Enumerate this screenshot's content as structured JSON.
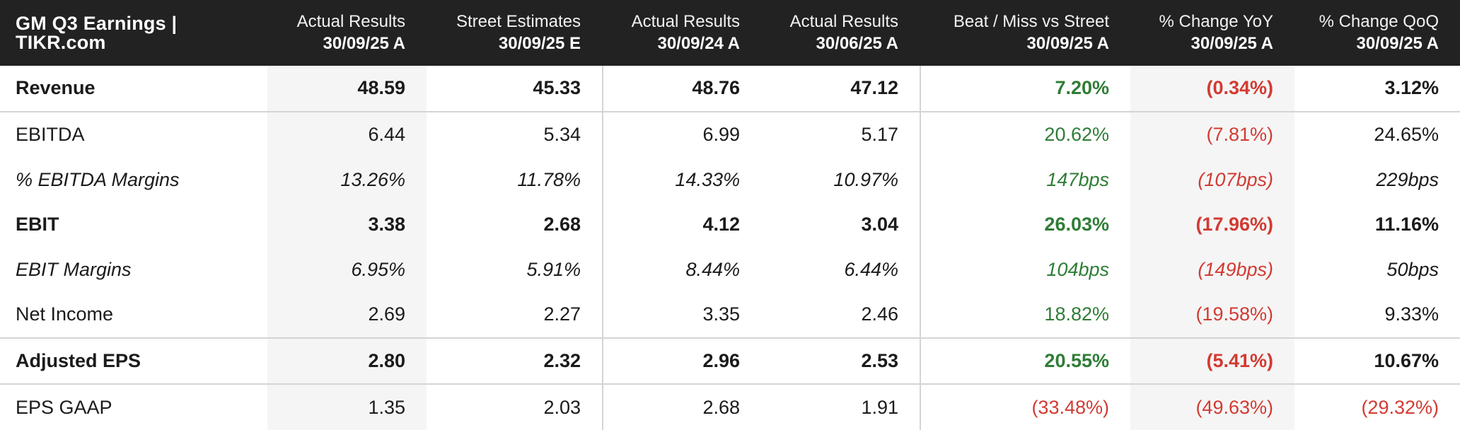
{
  "colors": {
    "header_bg": "#222222",
    "header_text": "#ffffff",
    "body_text": "#1b1b1b",
    "positive_green": "#2f7d36",
    "negative_red": "#d23b33",
    "shaded_column_bg": "#f5f5f5",
    "divider": "#d4d4d4"
  },
  "chart_data": {
    "type": "table",
    "title": "GM Q3 Earnings | TIKR.com",
    "column_headers": [
      {
        "label": "Actual Results",
        "date": "30/09/25 A"
      },
      {
        "label": "Street Estimates",
        "date": "30/09/25 E"
      },
      {
        "label": "Actual Results",
        "date": "30/09/24 A"
      },
      {
        "label": "Actual Results",
        "date": "30/06/25 A"
      },
      {
        "label": "Beat / Miss vs Street",
        "date": "30/09/25 A"
      },
      {
        "label": "% Change YoY",
        "date": "30/09/25 A"
      },
      {
        "label": "% Change QoQ",
        "date": "30/09/25 A"
      }
    ],
    "rows": [
      {
        "label": "Revenue",
        "style_class": "bold",
        "values": [
          "48.59",
          "45.33",
          "48.76",
          "47.12",
          "7.20%",
          "(0.34%)",
          "3.12%"
        ],
        "value_classes": [
          "pos",
          "neg",
          "plain"
        ]
      },
      {
        "label": "EBITDA",
        "style_class": "regular",
        "values": [
          "6.44",
          "5.34",
          "6.99",
          "5.17",
          "20.62%",
          "(7.81%)",
          "24.65%"
        ],
        "value_classes": [
          "pos",
          "neg",
          "plain"
        ]
      },
      {
        "label": "% EBITDA Margins",
        "style_class": "italic",
        "values": [
          "13.26%",
          "11.78%",
          "14.33%",
          "10.97%",
          "147bps",
          "(107bps)",
          "229bps"
        ],
        "value_classes": [
          "pos",
          "neg",
          "plain"
        ]
      },
      {
        "label": "EBIT",
        "style_class": "bold",
        "values": [
          "3.38",
          "2.68",
          "4.12",
          "3.04",
          "26.03%",
          "(17.96%)",
          "11.16%"
        ],
        "value_classes": [
          "pos",
          "neg",
          "plain"
        ]
      },
      {
        "label": "EBIT Margins",
        "style_class": "italic",
        "values": [
          "6.95%",
          "5.91%",
          "8.44%",
          "6.44%",
          "104bps",
          "(149bps)",
          "50bps"
        ],
        "value_classes": [
          "pos",
          "neg",
          "plain"
        ]
      },
      {
        "label": "Net Income",
        "style_class": "regular",
        "values": [
          "2.69",
          "2.27",
          "3.35",
          "2.46",
          "18.82%",
          "(19.58%)",
          "9.33%"
        ],
        "value_classes": [
          "pos",
          "neg",
          "plain"
        ]
      },
      {
        "label": "Adjusted EPS",
        "style_class": "bold",
        "values": [
          "2.80",
          "2.32",
          "2.96",
          "2.53",
          "20.55%",
          "(5.41%)",
          "10.67%"
        ],
        "value_classes": [
          "pos",
          "neg",
          "plain"
        ]
      },
      {
        "label": "EPS GAAP",
        "style_class": "regular",
        "values": [
          "1.35",
          "2.03",
          "2.68",
          "1.91",
          "(33.48%)",
          "(49.63%)",
          "(29.32%)"
        ],
        "value_classes": [
          "neg",
          "neg",
          "neg"
        ]
      }
    ]
  }
}
